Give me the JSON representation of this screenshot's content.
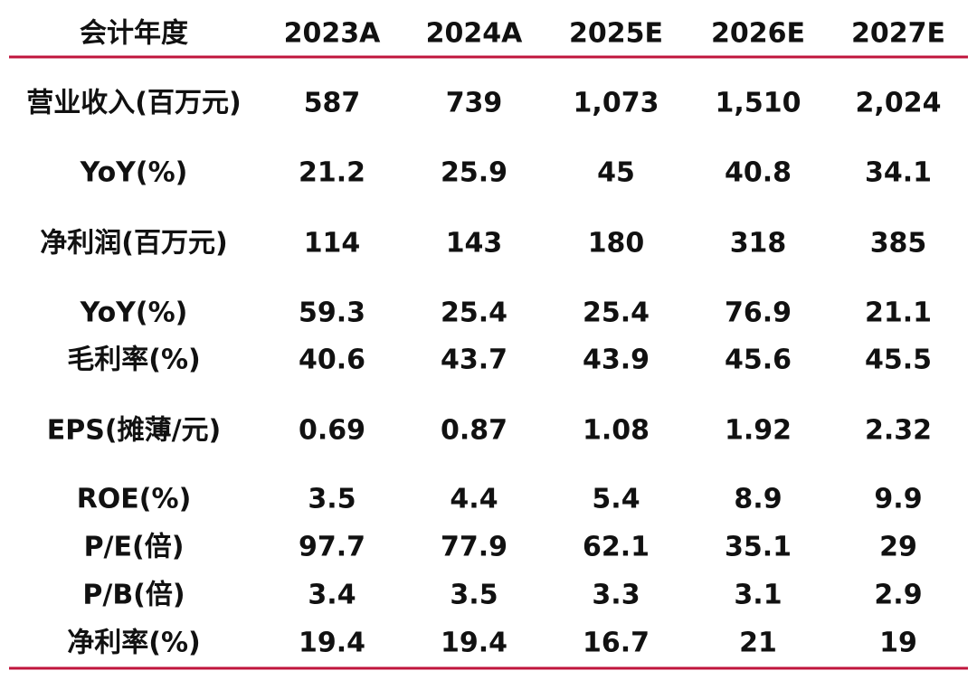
{
  "table": {
    "header": [
      "会计年度",
      "2023A",
      "2024A",
      "2025E",
      "2026E",
      "2027E"
    ],
    "rows": [
      [
        "营业收入(百万元)",
        "587",
        "739",
        "1,073",
        "1,510",
        "2,024"
      ],
      [
        "YoY(%)",
        "21.2",
        "25.9",
        "45",
        "40.8",
        "34.1"
      ],
      [
        "净利润(百万元)",
        "114",
        "143",
        "180",
        "318",
        "385"
      ],
      [
        "YoY(%)",
        "59.3",
        "25.4",
        "25.4",
        "76.9",
        "21.1"
      ],
      [
        "毛利率(%)",
        "40.6",
        "43.7",
        "43.9",
        "45.6",
        "45.5"
      ],
      [
        "EPS(摊薄/元)",
        "0.69",
        "0.87",
        "1.08",
        "1.92",
        "2.32"
      ],
      [
        "ROE(%)",
        "3.5",
        "4.4",
        "5.4",
        "8.9",
        "9.9"
      ],
      [
        "P/E(倍)",
        "97.7",
        "77.9",
        "62.1",
        "35.1",
        "29"
      ],
      [
        "P/B(倍)",
        "3.4",
        "3.5",
        "3.3",
        "3.1",
        "2.9"
      ],
      [
        "净利率(%)",
        "19.4",
        "19.4",
        "16.7",
        "21",
        "19"
      ]
    ]
  }
}
